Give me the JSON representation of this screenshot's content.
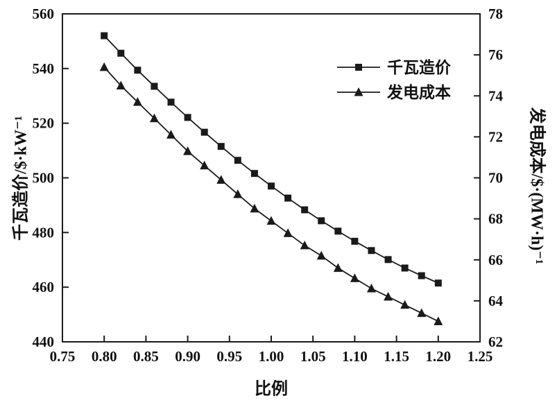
{
  "figure": {
    "background": "#ffffff",
    "ink": "#1a1a1a"
  },
  "chart_data": {
    "type": "line",
    "title": "",
    "x_axis": {
      "label": "比例",
      "min": 0.75,
      "max": 1.25,
      "ticks": [
        "0.75",
        "0.80",
        "0.85",
        "0.90",
        "0.95",
        "1.00",
        "1.05",
        "1.10",
        "1.15",
        "1.20",
        "1.25"
      ]
    },
    "y_left": {
      "label": "千瓦造价/$·kW⁻¹",
      "min": 440,
      "max": 560,
      "ticks": [
        "440",
        "460",
        "480",
        "500",
        "520",
        "540",
        "560"
      ]
    },
    "y_right": {
      "label": "发电成本/$·(MW·h)⁻¹",
      "min": 62,
      "max": 78,
      "ticks": [
        "62",
        "64",
        "66",
        "68",
        "70",
        "72",
        "74",
        "76",
        "78"
      ]
    },
    "x": [
      0.8,
      0.82,
      0.84,
      0.86,
      0.88,
      0.9,
      0.92,
      0.94,
      0.96,
      0.98,
      1.0,
      1.02,
      1.04,
      1.06,
      1.08,
      1.1,
      1.12,
      1.14,
      1.16,
      1.18,
      1.2
    ],
    "series": [
      {
        "name": "千瓦造价",
        "axis": "left",
        "marker": "square",
        "values": [
          552.0,
          545.6,
          539.4,
          533.5,
          527.7,
          522.1,
          516.7,
          511.5,
          506.4,
          501.6,
          497.0,
          492.6,
          488.3,
          484.3,
          480.5,
          476.8,
          473.4,
          470.1,
          467.0,
          464.2,
          461.5
        ]
      },
      {
        "name": "发电成本",
        "axis": "right",
        "marker": "triangle",
        "values": [
          75.4,
          74.5,
          73.7,
          72.9,
          72.1,
          71.3,
          70.6,
          69.9,
          69.2,
          68.5,
          67.9,
          67.3,
          66.7,
          66.2,
          65.6,
          65.1,
          64.6,
          64.2,
          63.8,
          63.4,
          63.0
        ]
      }
    ],
    "legend": {
      "position": "upper-right"
    },
    "grid": false
  }
}
